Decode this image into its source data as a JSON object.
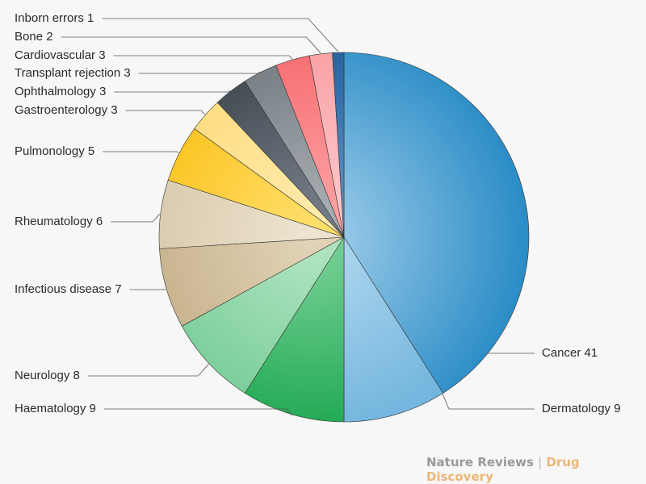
{
  "chart_data": {
    "type": "pie",
    "title": "",
    "total": 100,
    "start": "top",
    "direction": "clockwise",
    "slices": [
      {
        "label": "Cancer",
        "value": 41,
        "color": "#2a8cc6",
        "light": "#a6d1ec",
        "side": "right"
      },
      {
        "label": "Dermatology",
        "value": 9,
        "color": "#6cb2dc",
        "light": "#b6daf0",
        "side": "right"
      },
      {
        "label": "Haematology",
        "value": 9,
        "color": "#14a44a",
        "light": "#7fd39c",
        "side": "left"
      },
      {
        "label": "Neurology",
        "value": 8,
        "color": "#6cc88f",
        "light": "#b4e6c4",
        "side": "left"
      },
      {
        "label": "Infectious disease",
        "value": 7,
        "color": "#c0a880",
        "light": "#e2d4b8",
        "side": "left"
      },
      {
        "label": "Rheumatology",
        "value": 6,
        "color": "#d2c2a2",
        "light": "#eee4d0",
        "side": "left"
      },
      {
        "label": "Pulmonology",
        "value": 5,
        "color": "#fbbc0a",
        "light": "#ffe070",
        "side": "left"
      },
      {
        "label": "Gastroenterology",
        "value": 3,
        "color": "#fdd874",
        "light": "#ffecb0",
        "side": "left"
      },
      {
        "label": "Ophthalmology",
        "value": 3,
        "color": "#363d44",
        "light": "#7c8590",
        "side": "left"
      },
      {
        "label": "Transplant rejection",
        "value": 3,
        "color": "#6c7378",
        "light": "#b0b6ba",
        "side": "left"
      },
      {
        "label": "Cardiovascular",
        "value": 3,
        "color": "#f56468",
        "light": "#ffaaac",
        "side": "left"
      },
      {
        "label": "Bone",
        "value": 2,
        "color": "#f89a9e",
        "light": "#ffd0d2",
        "side": "left"
      },
      {
        "label": "Inborn errors",
        "value": 1,
        "color": "#1c5a98",
        "light": "#6b9ccc",
        "side": "left"
      }
    ],
    "slice_labels": [
      "Cancer 41",
      "Dermatology 9",
      "Haematology 9",
      "Neurology 8",
      "Infectious disease 7",
      "Rheumatology 6",
      "Pulmonology 5",
      "Gastroenterology 3",
      "Ophthalmology 3",
      "Transplant rejection 3",
      "Cardiovascular 3",
      "Bone 2",
      "Inborn errors 1"
    ]
  },
  "footer": {
    "publisher": "Nature Reviews",
    "separator": "|",
    "journal": "Drug Discovery"
  }
}
